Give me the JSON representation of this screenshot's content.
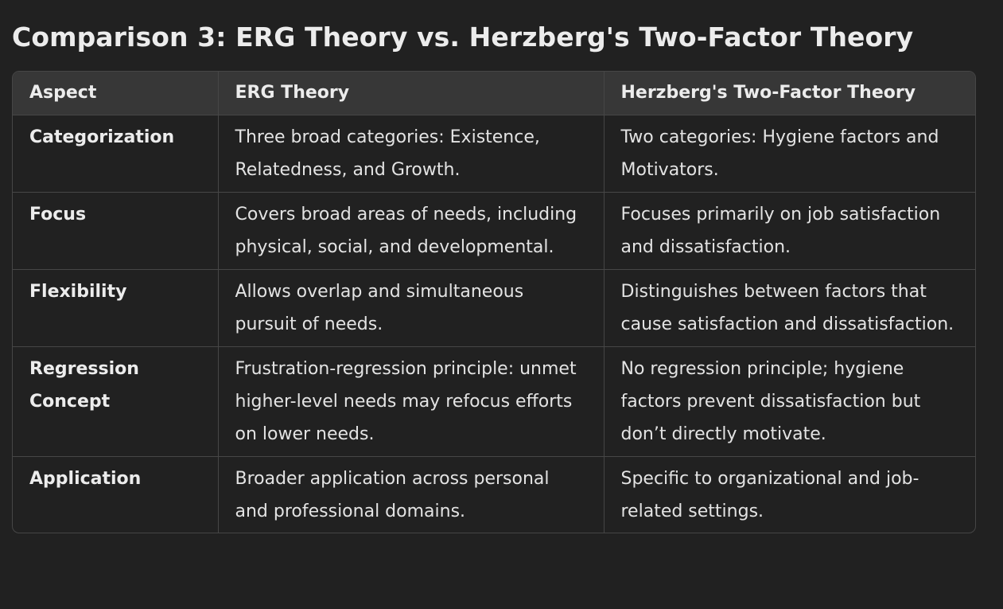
{
  "title": "Comparison 3: ERG Theory vs. Herzberg's Two-Factor Theory",
  "table": {
    "headers": [
      "Aspect",
      "ERG Theory",
      "Herzberg's Two-Factor Theory"
    ],
    "rows": [
      [
        "Categorization",
        "Three broad categories: Existence, Relatedness, and Growth.",
        "Two categories: Hygiene factors and Motivators."
      ],
      [
        "Focus",
        "Covers broad areas of needs, including physical, social, and developmental.",
        "Focuses primarily on job satisfaction and dissatisfaction."
      ],
      [
        "Flexibility",
        "Allows overlap and simultaneous pursuit of needs.",
        "Distinguishes between factors that cause satisfaction and dissatisfaction."
      ],
      [
        "Regression Concept",
        "Frustration-regression principle: unmet higher-level needs may refocus efforts on lower needs.",
        "No regression principle; hygiene factors prevent dissatisfaction but don’t directly motivate."
      ],
      [
        "Application",
        "Broader application across personal and professional domains.",
        "Specific to organizational and job-related settings."
      ]
    ]
  }
}
